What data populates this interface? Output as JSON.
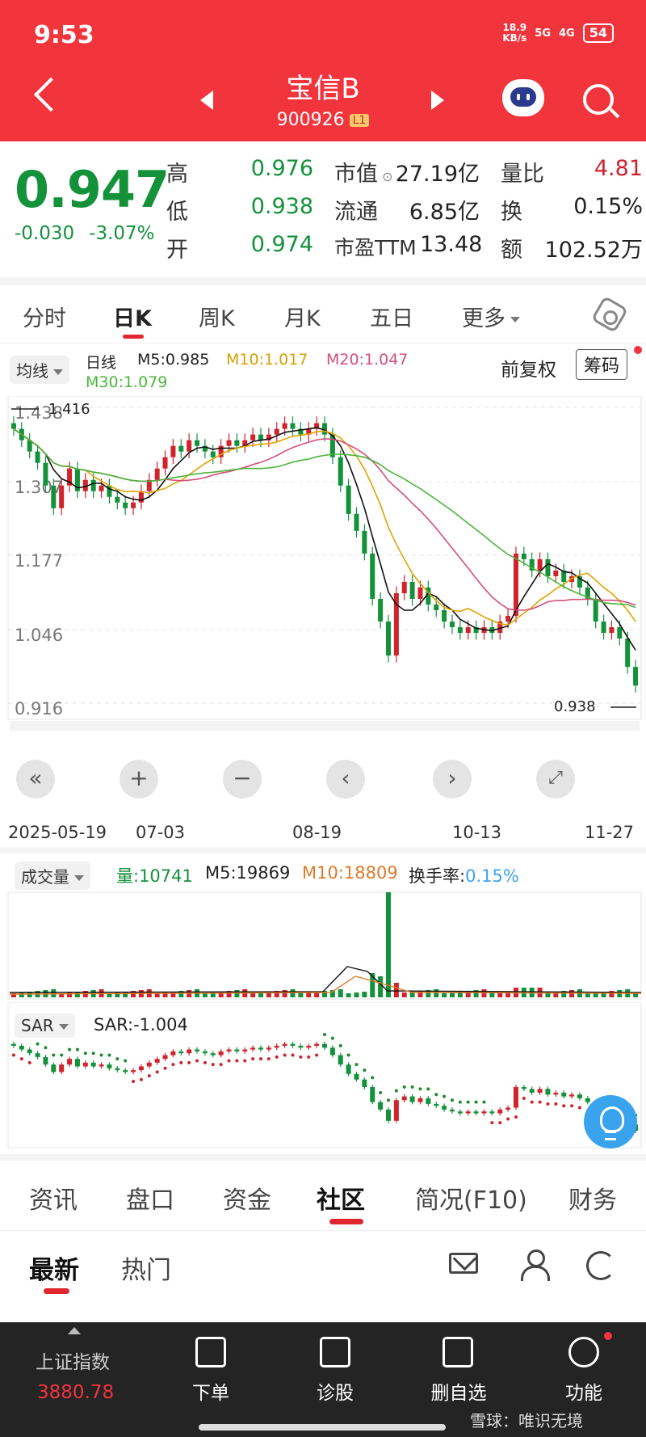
{
  "status": {
    "time": "9:53",
    "speed_top": "18.9",
    "speed_bottom": "KB/s",
    "sig1": "5G",
    "sig2": "4G",
    "battery": "54"
  },
  "header": {
    "title": "宝信B",
    "code": "900926",
    "level_badge": "L1"
  },
  "quote": {
    "price": "0.947",
    "change": "-0.030",
    "change_pct": "-3.07%",
    "high_label": "高",
    "high": "0.976",
    "low_label": "低",
    "low": "0.938",
    "open_label": "开",
    "open": "0.974",
    "mcap_label": "市值",
    "mcap": "27.19亿",
    "float_label": "流通",
    "float": "6.85亿",
    "pe_label": "市盈TTM",
    "pe": "13.48",
    "volratio_label": "量比",
    "volratio": "4.81",
    "turnover_label": "换",
    "turnover": "0.15%",
    "amount_label": "额",
    "amount": "102.52万"
  },
  "chart_tabs": [
    "分时",
    "日K",
    "周K",
    "月K",
    "五日",
    "更多"
  ],
  "ma": {
    "selector": "均线",
    "period": "日线",
    "m5": "M5:0.985",
    "m10": "M10:1.017",
    "m20": "M20:1.047",
    "m30": "M30:1.079",
    "adjust": "前复权",
    "chips": "筹码"
  },
  "volume": {
    "selector": "成交量",
    "vol": "量:10741",
    "m5": "M5:19869",
    "m10": "M10:18809",
    "turnover_label": "换手率:",
    "turnover": "0.15%"
  },
  "sar": {
    "selector": "SAR",
    "value": "SAR:-1.004"
  },
  "chart_data": [
    {
      "type": "candlestick",
      "title": "",
      "y_ticks": [
        "1.438",
        "1.307",
        "1.177",
        "1.046",
        "0.916"
      ],
      "ylim": [
        0.916,
        1.438
      ],
      "x_ticks": [
        "2025-05-19",
        "07-03",
        "08-19",
        "10-13",
        "11-27"
      ],
      "annotations": {
        "max": "1.416",
        "min": "0.938"
      },
      "close_approx": [
        1.4,
        1.38,
        1.36,
        1.34,
        1.3,
        1.26,
        1.3,
        1.33,
        1.29,
        1.31,
        1.29,
        1.3,
        1.28,
        1.27,
        1.26,
        1.27,
        1.29,
        1.31,
        1.33,
        1.35,
        1.37,
        1.36,
        1.38,
        1.37,
        1.36,
        1.35,
        1.37,
        1.38,
        1.37,
        1.38,
        1.39,
        1.38,
        1.39,
        1.4,
        1.41,
        1.4,
        1.39,
        1.4,
        1.41,
        1.39,
        1.35,
        1.3,
        1.25,
        1.22,
        1.18,
        1.1,
        1.06,
        1.0,
        1.11,
        1.13,
        1.1,
        1.12,
        1.09,
        1.08,
        1.06,
        1.05,
        1.04,
        1.05,
        1.04,
        1.05,
        1.04,
        1.06,
        1.07,
        1.18,
        1.17,
        1.15,
        1.17,
        1.14,
        1.15,
        1.13,
        1.14,
        1.12,
        1.1,
        1.06,
        1.04,
        1.05,
        1.03,
        0.98,
        0.947
      ],
      "series": [
        {
          "name": "M5",
          "color": "#111111"
        },
        {
          "name": "M10",
          "color": "#e0a400"
        },
        {
          "name": "M20",
          "color": "#d2507a"
        },
        {
          "name": "M30",
          "color": "#4cb43c"
        }
      ]
    },
    {
      "type": "bar",
      "title": "",
      "spike": 1
    },
    {
      "type": "scatter",
      "title": ""
    }
  ],
  "bottom_tabs": [
    "资讯",
    "盘口",
    "资金",
    "社区",
    "简况(F10)",
    "财务"
  ],
  "sub_tabs": [
    "最新",
    "热门"
  ],
  "nav": {
    "index_label": "上证指数",
    "index_value": "3880.78",
    "items": [
      "下单",
      "诊股",
      "删自选",
      "功能"
    ]
  },
  "watermark": "雪球：唯识无境",
  "colors": {
    "header": "#f2343d",
    "down": "#13923a",
    "up": "#d0232c"
  }
}
